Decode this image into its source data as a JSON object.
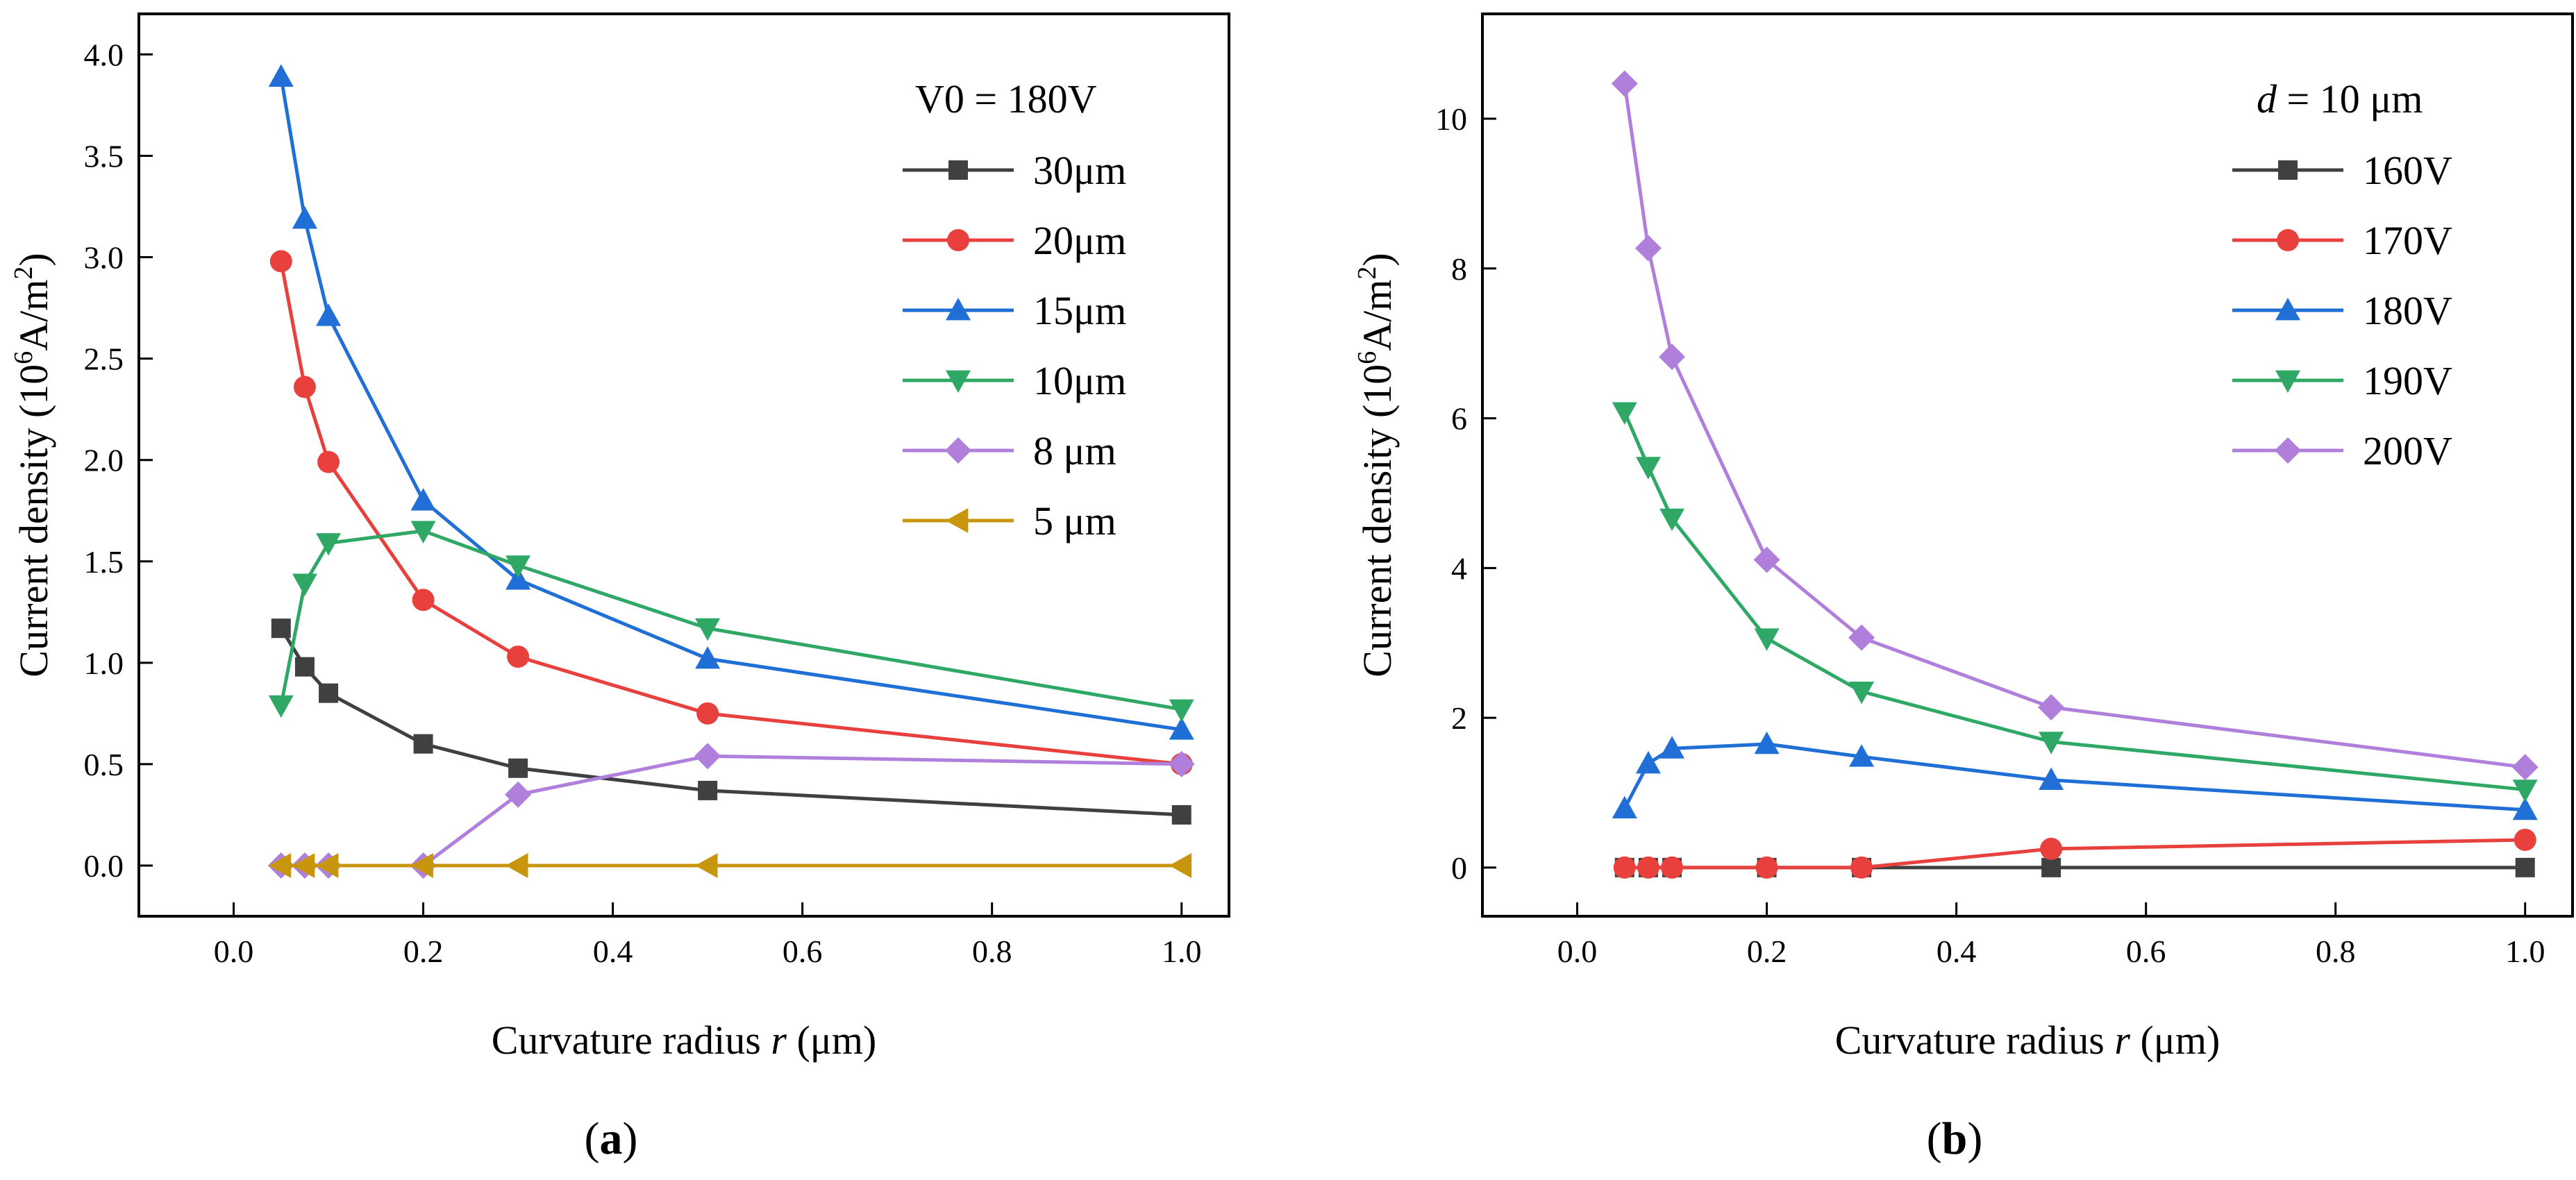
{
  "figure": {
    "panels": [
      {
        "label_open": "(",
        "label_letter": "a",
        "label_close": ")"
      },
      {
        "label_open": "(",
        "label_letter": "b",
        "label_close": ")"
      }
    ]
  },
  "chart_data": [
    {
      "type": "line",
      "xlabel": {
        "prefix": "Curvature radius ",
        "var": "r",
        "suffix": " (μm)"
      },
      "ylabel": {
        "prefix": "Current density (10",
        "sup1": "6",
        "mid": "A/m",
        "sup2": "2",
        "suffix": ")"
      },
      "xlim": [
        -0.1,
        1.05
      ],
      "ylim": [
        -0.25,
        4.2
      ],
      "xticks": [
        0.0,
        0.2,
        0.4,
        0.6,
        0.8,
        1.0
      ],
      "xtick_labels": [
        "0.0",
        "0.2",
        "0.4",
        "0.6",
        "0.8",
        "1.0"
      ],
      "yticks": [
        0.0,
        0.5,
        1.0,
        1.5,
        2.0,
        2.5,
        3.0,
        3.5,
        4.0
      ],
      "ytick_labels": [
        "0.0",
        "0.5",
        "1.0",
        "1.5",
        "2.0",
        "2.5",
        "3.0",
        "3.5",
        "4.0"
      ],
      "legend_title": {
        "text": "V0  =  180V"
      },
      "legend_position": "top-right",
      "x": [
        0.05,
        0.075,
        0.1,
        0.2,
        0.3,
        0.5,
        1.0
      ],
      "series": [
        {
          "name": "30μm",
          "color": "#404040",
          "marker": "square",
          "values": [
            1.17,
            0.98,
            0.85,
            0.6,
            0.48,
            0.37,
            0.25
          ]
        },
        {
          "name": "20μm",
          "color": "#e8403c",
          "marker": "circle",
          "values": [
            2.98,
            2.36,
            1.99,
            1.31,
            1.03,
            0.75,
            0.5
          ]
        },
        {
          "name": "15μm",
          "color": "#1f6fd6",
          "marker": "triangle-up",
          "values": [
            3.89,
            3.19,
            2.71,
            1.8,
            1.41,
            1.02,
            0.67
          ]
        },
        {
          "name": "10μm",
          "color": "#2fa866",
          "marker": "triangle-down",
          "values": [
            0.79,
            1.39,
            1.59,
            1.65,
            1.48,
            1.17,
            0.77
          ]
        },
        {
          "name": "8 μm",
          "color": "#b07fdc",
          "marker": "diamond",
          "values": [
            0.0,
            0.0,
            0.0,
            0.0,
            0.35,
            0.54,
            0.5
          ]
        },
        {
          "name": "5 μm",
          "color": "#c8960c",
          "marker": "triangle-left",
          "values": [
            0.0,
            0.0,
            0.0,
            0.0,
            0.0,
            0.0,
            0.0
          ]
        }
      ]
    },
    {
      "type": "line",
      "xlabel": {
        "prefix": "Curvature radius ",
        "var": "r",
        "suffix": " (μm)"
      },
      "ylabel": {
        "prefix": "Current density (10",
        "sup1": "6",
        "mid": "A/m",
        "sup2": "2",
        "suffix": ")"
      },
      "xlim": [
        -0.1,
        1.05
      ],
      "ylim": [
        -0.65,
        11.4
      ],
      "xticks": [
        0.0,
        0.2,
        0.4,
        0.6,
        0.8,
        1.0
      ],
      "xtick_labels": [
        "0.0",
        "0.2",
        "0.4",
        "0.6",
        "0.8",
        "1.0"
      ],
      "yticks": [
        0,
        2,
        4,
        6,
        8,
        10
      ],
      "ytick_labels": [
        "0",
        "2",
        "4",
        "6",
        "8",
        "10"
      ],
      "legend_title": {
        "var": "d",
        "text": " = 10 μm"
      },
      "legend_position": "top-right",
      "x": [
        0.05,
        0.075,
        0.1,
        0.2,
        0.3,
        0.5,
        1.0
      ],
      "series": [
        {
          "name": "160V",
          "color": "#404040",
          "marker": "square",
          "values": [
            0.0,
            0.0,
            0.0,
            0.0,
            0.0,
            0.0,
            0.0
          ]
        },
        {
          "name": "170V",
          "color": "#e8403c",
          "marker": "circle",
          "values": [
            0.0,
            0.0,
            0.0,
            0.0,
            0.0,
            0.25,
            0.37
          ]
        },
        {
          "name": "180V",
          "color": "#1f6fd6",
          "marker": "triangle-up",
          "values": [
            0.79,
            1.39,
            1.59,
            1.65,
            1.48,
            1.17,
            0.77
          ]
        },
        {
          "name": "190V",
          "color": "#2fa866",
          "marker": "triangle-down",
          "values": [
            6.08,
            5.35,
            4.66,
            3.06,
            2.35,
            1.68,
            1.04
          ]
        },
        {
          "name": "200V",
          "color": "#b07fdc",
          "marker": "diamond",
          "values": [
            10.47,
            8.27,
            6.82,
            4.11,
            3.07,
            2.14,
            1.34
          ]
        }
      ]
    }
  ]
}
